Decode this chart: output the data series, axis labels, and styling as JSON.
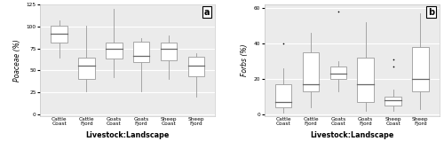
{
  "panel_a": {
    "title": "a",
    "ylabel": "Poaceae (%)",
    "xlabel": "Livestock:Landscape",
    "ylim": [
      -2,
      125
    ],
    "yticks": [
      0,
      25,
      50,
      75,
      100,
      125
    ],
    "groups": [
      "Cattle\nCoast",
      "Cattle\nFjord",
      "Goats\nCoast",
      "Goats\nFjord",
      "Sheep\nCoast",
      "Sheep\nFjord"
    ],
    "boxes": [
      {
        "q1": 82,
        "median": 92,
        "q3": 101,
        "whisker_low": 65,
        "whisker_high": 107,
        "outliers": []
      },
      {
        "q1": 40,
        "median": 55,
        "q3": 65,
        "whisker_low": 26,
        "whisker_high": 101,
        "outliers": []
      },
      {
        "q1": 64,
        "median": 75,
        "q3": 82,
        "whisker_low": 42,
        "whisker_high": 120,
        "outliers": []
      },
      {
        "q1": 60,
        "median": 67,
        "q3": 83,
        "whisker_low": 26,
        "whisker_high": 87,
        "outliers": []
      },
      {
        "q1": 62,
        "median": 75,
        "q3": 82,
        "whisker_low": 40,
        "whisker_high": 90,
        "outliers": []
      },
      {
        "q1": 43,
        "median": 55,
        "q3": 66,
        "whisker_low": 20,
        "whisker_high": 70,
        "outliers": []
      }
    ]
  },
  "panel_b": {
    "title": "b",
    "ylabel": "Forbs (%)",
    "xlabel": "Livestock:Landscape",
    "ylim": [
      -1,
      62
    ],
    "yticks": [
      0,
      20,
      40,
      60
    ],
    "groups": [
      "Cattle\nCoast",
      "Cattle\nFjord",
      "Goats\nCoast",
      "Goats\nFjord",
      "Sheep\nCoast",
      "Sheep\nFjord"
    ],
    "boxes": [
      {
        "q1": 4,
        "median": 7,
        "q3": 17,
        "whisker_low": 1,
        "whisker_high": 26,
        "outliers": [
          40
        ]
      },
      {
        "q1": 13,
        "median": 17,
        "q3": 35,
        "whisker_low": 4,
        "whisker_high": 46,
        "outliers": []
      },
      {
        "q1": 20,
        "median": 23,
        "q3": 27,
        "whisker_low": 13,
        "whisker_high": 30,
        "outliers": [
          58
        ]
      },
      {
        "q1": 7,
        "median": 17,
        "q3": 32,
        "whisker_low": 2,
        "whisker_high": 52,
        "outliers": []
      },
      {
        "q1": 5,
        "median": 8,
        "q3": 10,
        "whisker_low": 2,
        "whisker_high": 14,
        "outliers": [
          27,
          31
        ]
      },
      {
        "q1": 13,
        "median": 20,
        "q3": 38,
        "whisker_low": 3,
        "whisker_high": 57,
        "outliers": []
      }
    ]
  },
  "bg_color": "#ebebeb",
  "box_color": "white",
  "median_color": "#666666",
  "whisker_color": "#999999",
  "grid_color": "white",
  "label_fontsize": 5.5,
  "tick_fontsize": 4.2,
  "title_fontsize": 7,
  "xlabel_fontsize": 5.8
}
